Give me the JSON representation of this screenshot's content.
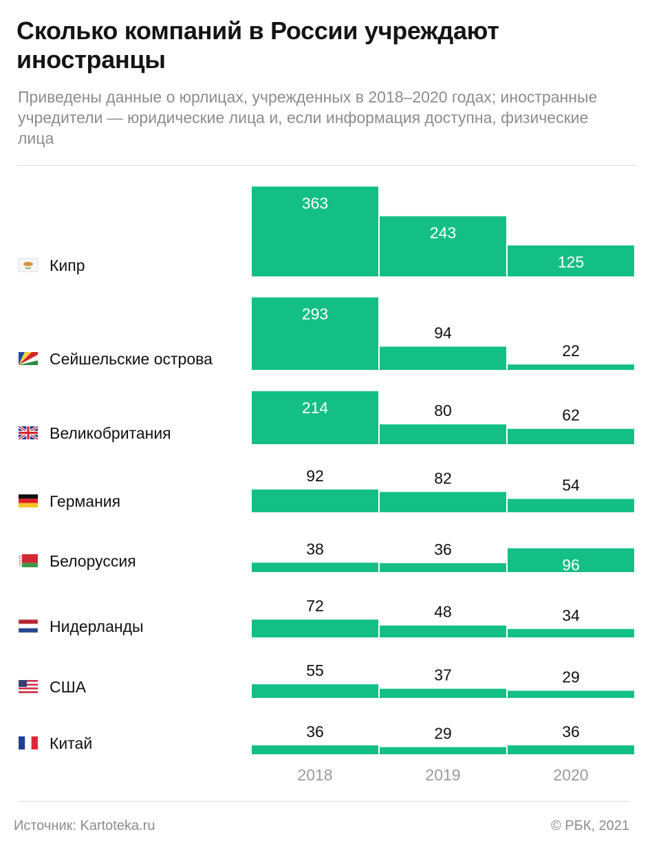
{
  "header": {
    "title": "Сколько компаний в России учреждают иностранцы",
    "subtitle": "Приведены данные о юрлицах, учрежденных в 2018–2020 годах; иностранные учредители — юридические лица и, если информация доступна, физические лица"
  },
  "footer": {
    "source": "Источник: Kartoteka.ru",
    "copyright": "© РБК, 2021"
  },
  "colors": {
    "bar": "#13bf85",
    "label_inside": "#ffffff",
    "label_outside": "#111111",
    "axis_text": "#9a9a9a"
  },
  "chart_data": {
    "type": "bar",
    "title": "Сколько компаний в России учреждают иностранцы",
    "categories": [
      "2018",
      "2019",
      "2020"
    ],
    "rows": [
      {
        "name": "Кипр",
        "flag_icon": "cyprus-flag-icon",
        "values": [
          363,
          243,
          125
        ]
      },
      {
        "name": "Сейшельские острова",
        "flag_icon": "seychelles-flag-icon",
        "values": [
          293,
          94,
          22
        ]
      },
      {
        "name": "Великобритания",
        "flag_icon": "uk-flag-icon",
        "values": [
          214,
          80,
          62
        ]
      },
      {
        "name": "Германия",
        "flag_icon": "germany-flag-icon",
        "values": [
          92,
          82,
          54
        ]
      },
      {
        "name": "Белоруссия",
        "flag_icon": "belarus-flag-icon",
        "values": [
          38,
          36,
          96
        ]
      },
      {
        "name": "Нидерланды",
        "flag_icon": "netherlands-flag-icon",
        "values": [
          72,
          48,
          34
        ]
      },
      {
        "name": "США",
        "flag_icon": "usa-flag-icon",
        "values": [
          55,
          37,
          29
        ]
      },
      {
        "name": "Китай",
        "flag_icon": "france-flag-icon",
        "values": [
          36,
          29,
          36
        ]
      }
    ],
    "grid": false,
    "legend": "none"
  }
}
